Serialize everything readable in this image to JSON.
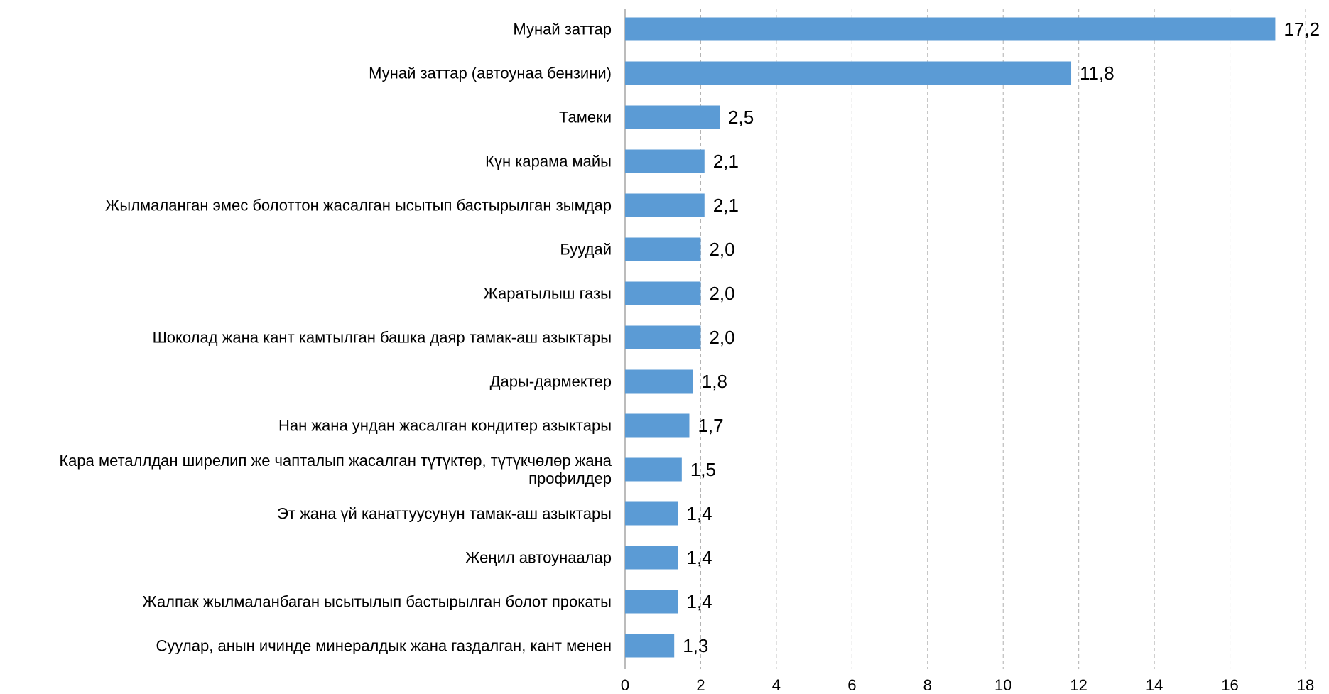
{
  "chart_data": {
    "type": "bar",
    "orientation": "horizontal",
    "categories": [
      "Мунай заттар",
      "Мунай заттар (автоунаа бензини)",
      "Тамеки",
      "Күн карама майы",
      "Жылмаланган эмес болоттон жасалган ысытып бастырылган зымдар",
      "Буудай",
      "Жаратылыш газы",
      "Шоколад жана кант камтылган башка даяр тамак-аш азыктары",
      "Дары-дармектер",
      "Нан жана ундан жасалган кондитер азыктары",
      "Кара металлдан ширелип же чапталып жасалган түтүктөр, түтүкчөлөр жана профилдер",
      "Эт жана үй канаттуусунун тамак-аш азыктары",
      "Жеңил автоунаалар",
      "Жалпак жылмаланбаган ысытылып бастырылган болот прокаты",
      "Суулар, анын ичинде минералдык жана газдалган, кант менен"
    ],
    "values": [
      17.2,
      11.8,
      2.5,
      2.1,
      2.1,
      2.0,
      2.0,
      2.0,
      1.8,
      1.7,
      1.5,
      1.4,
      1.4,
      1.4,
      1.3
    ],
    "value_labels": [
      "17,2",
      "11,8",
      "2,5",
      "2,1",
      "2,1",
      "2,0",
      "2,0",
      "2,0",
      "1,8",
      "1,7",
      "1,5",
      "1,4",
      "1,4",
      "1,4",
      "1,3"
    ],
    "color": "#5b9bd5",
    "xlim": [
      0,
      18
    ],
    "xticks": [
      0,
      2,
      4,
      6,
      8,
      10,
      12,
      14,
      16,
      18
    ],
    "grid": true
  }
}
